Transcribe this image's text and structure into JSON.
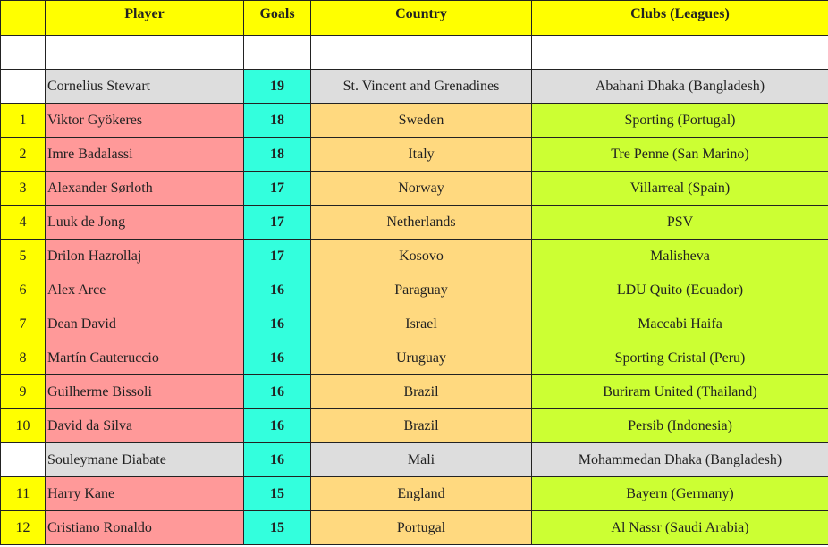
{
  "headers": {
    "rank": "",
    "player": "Player",
    "goals": "Goals",
    "country": "Country",
    "clubs": "Clubs (Leagues)"
  },
  "rows": [
    {
      "rank": "",
      "player": "Cornelius Stewart",
      "goals": "19",
      "country": "St. Vincent and Grenadines",
      "clubs": "Abahani Dhaka (Bangladesh)",
      "ranked": false
    },
    {
      "rank": "1",
      "player": "Viktor Gyökeres",
      "goals": "18",
      "country": "Sweden",
      "clubs": "Sporting (Portugal)",
      "ranked": true
    },
    {
      "rank": "2",
      "player": "Imre Badalassi",
      "goals": "18",
      "country": "Italy",
      "clubs": "Tre Penne (San Marino)",
      "ranked": true
    },
    {
      "rank": "3",
      "player": "Alexander Sørloth",
      "goals": "17",
      "country": "Norway",
      "clubs": "Villarreal (Spain)",
      "ranked": true
    },
    {
      "rank": "4",
      "player": "Luuk de Jong",
      "goals": "17",
      "country": "Netherlands",
      "clubs": "PSV",
      "ranked": true
    },
    {
      "rank": "5",
      "player": "Drilon Hazrollaj",
      "goals": "17",
      "country": "Kosovo",
      "clubs": "Malisheva",
      "ranked": true
    },
    {
      "rank": "6",
      "player": "Alex Arce",
      "goals": "16",
      "country": "Paraguay",
      "clubs": "LDU Quito (Ecuador)",
      "ranked": true
    },
    {
      "rank": "7",
      "player": "Dean David",
      "goals": "16",
      "country": "Israel",
      "clubs": "Maccabi Haifa",
      "ranked": true
    },
    {
      "rank": "8",
      "player": "Martín Cauteruccio",
      "goals": "16",
      "country": "Uruguay",
      "clubs": "Sporting Cristal (Peru)",
      "ranked": true
    },
    {
      "rank": "9",
      "player": "Guilherme Bissoli",
      "goals": "16",
      "country": "Brazil",
      "clubs": "Buriram United (Thailand)",
      "ranked": true
    },
    {
      "rank": "10",
      "player": "David da Silva",
      "goals": "16",
      "country": "Brazil",
      "clubs": "Persib (Indonesia)",
      "ranked": true
    },
    {
      "rank": "",
      "player": "Souleymane Diabate",
      "goals": "16",
      "country": "Mali",
      "clubs": "Mohammedan Dhaka (Bangladesh)",
      "ranked": false
    },
    {
      "rank": "11",
      "player": "Harry Kane",
      "goals": "15",
      "country": "England",
      "clubs": "Bayern (Germany)",
      "ranked": true
    },
    {
      "rank": "12",
      "player": "Cristiano Ronaldo",
      "goals": "15",
      "country": "Portugal",
      "clubs": "Al Nassr (Saudi Arabia)",
      "ranked": true
    }
  ],
  "colors": {
    "header": "#ffff00",
    "rank": "#ffff00",
    "player": "#ff9999",
    "goals": "#33ffdd",
    "country": "#ffd97f",
    "clubs": "#ccff33",
    "unranked": "#dddddd"
  }
}
